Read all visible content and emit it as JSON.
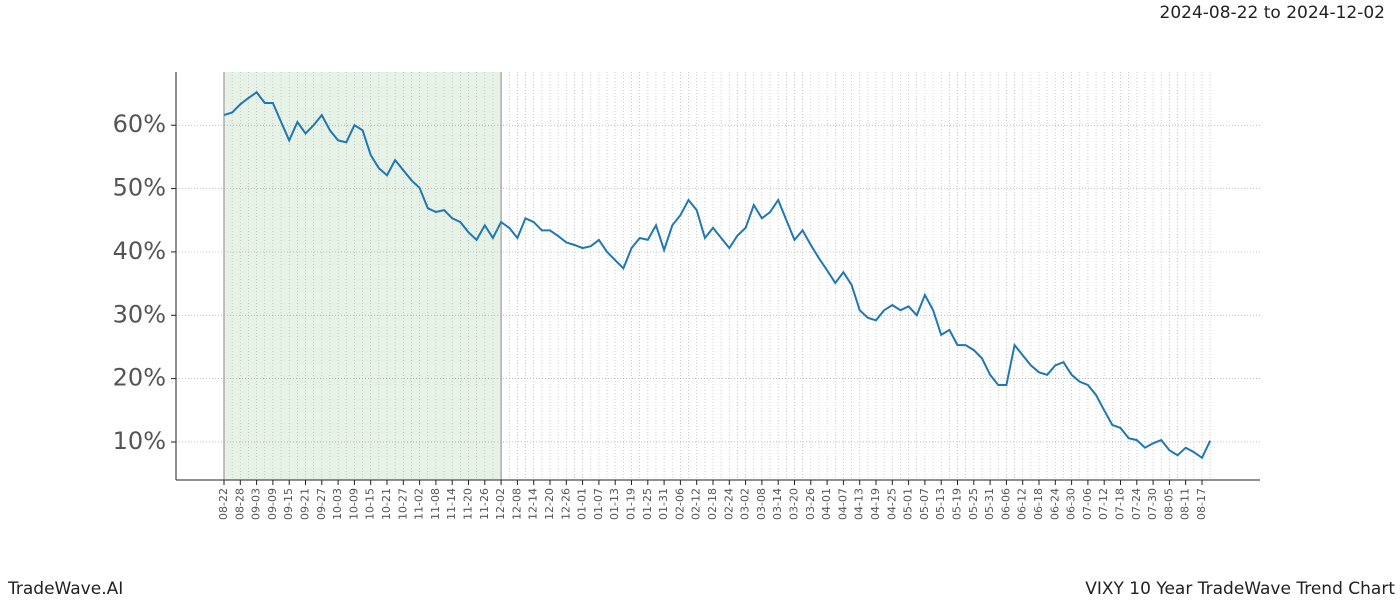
{
  "header": {
    "range": "2024-08-22 to 2024-12-02"
  },
  "footer": {
    "brand": "TradeWave.AI",
    "title": "VIXY 10 Year TradeWave Trend Chart"
  },
  "chart_data": {
    "type": "line",
    "categories": [
      "08-22",
      null,
      "08-28",
      null,
      "09-03",
      null,
      "09-09",
      null,
      "09-15",
      null,
      "09-21",
      null,
      "09-27",
      null,
      "10-03",
      null,
      "10-09",
      null,
      "10-15",
      null,
      "10-21",
      null,
      "10-27",
      null,
      "11-02",
      null,
      "11-08",
      null,
      "11-14",
      null,
      "11-20",
      null,
      "11-26",
      null,
      "12-02",
      null,
      "12-08",
      null,
      "12-14",
      null,
      "12-20",
      null,
      "12-26",
      null,
      "01-01",
      null,
      "01-07",
      null,
      "01-13",
      null,
      "01-19",
      null,
      "01-25",
      null,
      "01-31",
      null,
      "02-06",
      null,
      "02-12",
      null,
      "02-18",
      null,
      "02-24",
      null,
      "03-02",
      null,
      "03-08",
      null,
      "03-14",
      null,
      "03-20",
      null,
      "03-26",
      null,
      "04-01",
      null,
      "04-07",
      null,
      "04-13",
      null,
      "04-19",
      null,
      "04-25",
      null,
      "05-01",
      null,
      "05-07",
      null,
      "05-13",
      null,
      "05-19",
      null,
      "05-25",
      null,
      "05-31",
      null,
      "06-06",
      null,
      "06-12",
      null,
      "06-18",
      null,
      "06-24",
      null,
      "06-30",
      null,
      "07-06",
      null,
      "07-12",
      null,
      "07-18",
      null,
      "07-24",
      null,
      "07-30",
      null,
      "08-05",
      null,
      "08-11",
      null,
      "08-17",
      null
    ],
    "series": [
      {
        "color": "#1f77b4",
        "values": [
          61.6,
          62.0,
          63.3,
          64.3,
          65.2,
          63.5,
          63.5,
          60.5,
          57.6,
          60.5,
          58.7,
          60,
          61.6,
          59.2,
          57.6,
          57.3,
          60,
          59.2,
          55.3,
          53.2,
          52.1,
          54.5,
          52.9,
          51.3,
          50.1,
          46.9,
          46.3,
          46.6,
          45.3,
          44.7,
          43.1,
          41.9,
          44.2,
          42.2,
          44.7,
          43.8,
          42.2,
          45.3,
          44.7,
          43.4,
          43.4,
          42.5,
          41.5,
          41.1,
          40.6,
          40.9,
          41.9,
          40,
          38.7,
          37.4,
          40.6,
          42.2,
          41.9,
          44.2,
          40.3,
          44.2,
          45.8,
          48.2,
          46.6,
          42.2,
          43.8,
          42.2,
          40.6,
          42.6,
          43.8,
          47.4,
          45.3,
          46.3,
          48.2,
          45,
          41.9,
          43.4,
          41.1,
          39,
          37.1,
          35.1,
          36.8,
          34.8,
          30.8,
          29.6,
          29.2,
          30.8,
          31.6,
          30.8,
          31.4,
          30,
          33.2,
          30.8,
          26.9,
          27.7,
          25.3,
          25.3,
          24.5,
          23.2,
          20.6,
          19,
          19,
          25.3,
          23.7,
          22.1,
          21,
          20.6,
          22.1,
          22.6,
          20.6,
          19.5,
          19,
          17.4,
          15,
          12.7,
          12.2,
          10.6,
          10.3,
          9.1,
          9.8,
          10.3,
          8.7,
          7.9,
          9.1,
          8.4,
          7.5,
          10.2
        ]
      }
    ],
    "shade": [
      "08-22",
      "12-02"
    ],
    "ylim": [
      4.0,
      68.4
    ],
    "yticks": [
      {
        "value": 10,
        "label": "10%"
      },
      {
        "value": 20,
        "label": "20%"
      },
      {
        "value": 30,
        "label": "30%"
      },
      {
        "value": 40,
        "label": "40%"
      },
      {
        "value": 50,
        "label": "50%"
      },
      {
        "value": 60,
        "label": "60%"
      }
    ],
    "grid": true
  }
}
